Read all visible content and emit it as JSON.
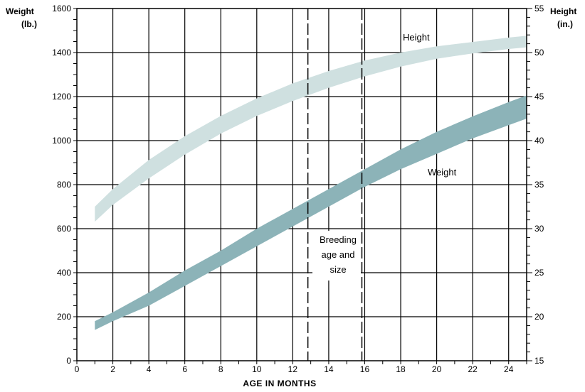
{
  "chart_data": {
    "type": "area",
    "xlabel": "AGE IN MONTHS",
    "ylabel_left": [
      "Weight",
      "(lb.)"
    ],
    "ylabel_right": [
      "Height",
      "(in.)"
    ],
    "x_ticks": [
      0,
      2,
      4,
      6,
      8,
      10,
      12,
      14,
      16,
      18,
      20,
      22,
      24
    ],
    "xlim": [
      0,
      25
    ],
    "y_left_ticks": [
      0,
      200,
      400,
      600,
      800,
      1000,
      1200,
      1400,
      1600
    ],
    "ylim_left": [
      0,
      1600
    ],
    "y_right_ticks": [
      15,
      20,
      25,
      30,
      35,
      40,
      45,
      50,
      55
    ],
    "ylim_right": [
      15,
      55
    ],
    "grid": true,
    "series": [
      {
        "name": "Height",
        "axis": "right",
        "color": "#cfe0e0",
        "x": [
          1,
          2,
          4,
          6,
          8,
          10,
          12,
          14,
          16,
          18,
          20,
          22,
          24,
          25
        ],
        "upper": [
          32.5,
          34.5,
          37.8,
          40.5,
          42.8,
          44.8,
          46.5,
          47.9,
          49.1,
          50.0,
          50.7,
          51.2,
          51.7,
          51.9
        ],
        "lower": [
          30.8,
          32.7,
          35.7,
          38.4,
          40.8,
          42.8,
          44.5,
          46.0,
          47.3,
          48.4,
          49.3,
          49.9,
          50.4,
          50.6
        ]
      },
      {
        "name": "Weight",
        "axis": "left",
        "color": "#8cb3b8",
        "x": [
          1,
          2,
          4,
          6,
          8,
          10,
          12,
          14,
          16,
          18,
          20,
          22,
          24,
          25
        ],
        "upper": [
          180,
          220,
          310,
          410,
          500,
          600,
          690,
          780,
          870,
          960,
          1040,
          1110,
          1175,
          1205
        ],
        "lower": [
          140,
          180,
          250,
          340,
          430,
          520,
          610,
          700,
          790,
          870,
          940,
          1010,
          1070,
          1100
        ]
      }
    ],
    "annotations": [
      {
        "id": "height",
        "text": "Height"
      },
      {
        "id": "weight",
        "text": "Weight"
      },
      {
        "id": "breeding",
        "lines": [
          "Breeding",
          "age and",
          "size"
        ]
      }
    ],
    "reference_lines": [
      {
        "x": 13,
        "style": "dashed"
      },
      {
        "x": 16,
        "style": "dashed"
      }
    ]
  }
}
